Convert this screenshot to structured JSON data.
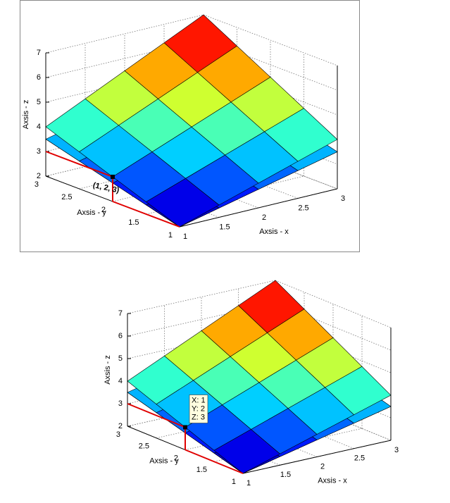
{
  "chart_data": [
    {
      "type": "surface",
      "colormap": "jet",
      "xlabel": "Axsis - x",
      "ylabel": "Axsis - y",
      "zlabel": "Axsis - z",
      "x": [
        1,
        1.5,
        2,
        2.5,
        3
      ],
      "y": [
        1,
        1.5,
        2,
        2.5,
        3
      ],
      "xlim": [
        1,
        3
      ],
      "ylim": [
        1,
        3
      ],
      "zlim": [
        2,
        7
      ],
      "xticks": [
        1,
        1.5,
        2,
        2.5,
        3
      ],
      "yticks": [
        1,
        1.5,
        2,
        2.5,
        3
      ],
      "zticks": [
        2,
        3,
        4,
        5,
        6,
        7
      ],
      "series": [
        {
          "z": [
            [
              2,
              2.5,
              3,
              3.5,
              4
            ],
            [
              2.5,
              3.0625,
              3.625,
              4.1875,
              4.75
            ],
            [
              3,
              3.625,
              4.25,
              4.875,
              5.5
            ],
            [
              3.5,
              4.1875,
              4.875,
              5.5625,
              6.25
            ],
            [
              4,
              4.75,
              5.5,
              6.25,
              7
            ]
          ]
        },
        {
          "z": [
            [
              2,
              2.375,
              2.75,
              3.125,
              3.5
            ],
            [
              2.375,
              2.75,
              3.125,
              3.5,
              3.875
            ],
            [
              2.75,
              3.125,
              3.5,
              3.875,
              4.25
            ],
            [
              3.125,
              3.5,
              3.875,
              4.25,
              4.625
            ],
            [
              3.5,
              3.875,
              4.25,
              4.625,
              5
            ]
          ]
        },
        {
          "z": [
            [
              2,
              2.375,
              2.75,
              3.125,
              3.5
            ],
            [
              2.375,
              2.6563,
              2.9375,
              3.2188,
              3.5
            ],
            [
              2.75,
              2.9375,
              3.125,
              3.3125,
              3.5
            ],
            [
              3.125,
              3.2188,
              3.3125,
              3.4063,
              3.5
            ],
            [
              3.5,
              3.5,
              3.5,
              3.5,
              3.5
            ]
          ]
        }
      ],
      "annotation": {
        "point": [
          1,
          2,
          3
        ],
        "label": "(1, 2, 3)"
      }
    },
    {
      "type": "surface",
      "colormap": "jet",
      "xlabel": "Axsis - x",
      "ylabel": "Axsis - y",
      "zlabel": "Axsis - z",
      "x": [
        1,
        1.5,
        2,
        2.5,
        3
      ],
      "y": [
        1,
        1.5,
        2,
        2.5,
        3
      ],
      "xlim": [
        1,
        3
      ],
      "ylim": [
        1,
        3
      ],
      "zlim": [
        2,
        7
      ],
      "xticks": [
        1,
        1.5,
        2,
        2.5,
        3
      ],
      "yticks": [
        1,
        1.5,
        2,
        2.5,
        3
      ],
      "zticks": [
        2,
        3,
        4,
        5,
        6,
        7
      ],
      "series": [
        {
          "z": [
            [
              2,
              2.5,
              3,
              3.5,
              4
            ],
            [
              2.5,
              3.0625,
              3.625,
              4.1875,
              4.75
            ],
            [
              3,
              3.625,
              4.25,
              4.875,
              5.5
            ],
            [
              3.5,
              4.1875,
              4.875,
              5.5625,
              6.25
            ],
            [
              4,
              4.75,
              5.5,
              6.25,
              7
            ]
          ]
        },
        {
          "z": [
            [
              2,
              2.375,
              2.75,
              3.125,
              3.5
            ],
            [
              2.375,
              2.75,
              3.125,
              3.5,
              3.875
            ],
            [
              2.75,
              3.125,
              3.5,
              3.875,
              4.25
            ],
            [
              3.125,
              3.5,
              3.875,
              4.25,
              4.625
            ],
            [
              3.5,
              3.875,
              4.25,
              4.625,
              5
            ]
          ]
        },
        {
          "z": [
            [
              2,
              2.375,
              2.75,
              3.125,
              3.5
            ],
            [
              2.375,
              2.6563,
              2.9375,
              3.2188,
              3.5
            ],
            [
              2.75,
              2.9375,
              3.125,
              3.3125,
              3.5
            ],
            [
              3.125,
              3.2188,
              3.3125,
              3.4063,
              3.5
            ],
            [
              3.5,
              3.5,
              3.5,
              3.5,
              3.5
            ]
          ]
        }
      ],
      "datatip": {
        "point": [
          1,
          2,
          3
        ],
        "labels": [
          "X: 1",
          "Y: 2",
          "Z: 3"
        ]
      }
    }
  ]
}
